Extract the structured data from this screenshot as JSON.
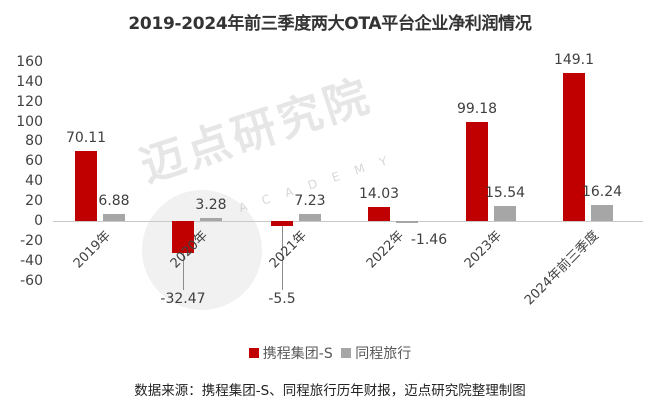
{
  "chart_data": {
    "type": "bar",
    "title": "2019-2024年前三季度两大OTA平台企业净利润情况",
    "categories": [
      "2019年",
      "2020年",
      "2021年",
      "2022年",
      "2023年",
      "2024年前三季度"
    ],
    "series": [
      {
        "name": "携程集团-S",
        "color": "#c00000",
        "values": [
          70.11,
          -32.47,
          -5.5,
          14.03,
          99.18,
          149.1
        ],
        "labels": [
          "70.11",
          "-32.47",
          "-5.5",
          "14.03",
          "99.18",
          "149.1"
        ]
      },
      {
        "name": "同程旅行",
        "color": "#a6a6a6",
        "values": [
          6.88,
          3.28,
          7.23,
          -1.46,
          15.54,
          16.24
        ],
        "labels": [
          "6.88",
          "3.28",
          "7.23",
          "-1.46",
          "15.54",
          "16.24"
        ]
      }
    ],
    "xlabel": "",
    "ylabel": "",
    "ylim": [
      -60,
      160
    ],
    "yticks": [
      "160",
      "140",
      "120",
      "100",
      "80",
      "60",
      "40",
      "20",
      "0",
      "-20",
      "-40",
      "-60"
    ],
    "grid": false,
    "legend_position": "bottom"
  },
  "title": "2019-2024年前三季度两大OTA平台企业净利润情况",
  "legend": [
    {
      "label": "携程集团-S",
      "color": "#c00000"
    },
    {
      "label": "同程旅行",
      "color": "#a6a6a6"
    }
  ],
  "source": "数据来源：携程集团-S、同程旅行历年财报，迈点研究院整理制图",
  "watermark": {
    "main": "迈点研究院",
    "sub": "ACADEMY"
  }
}
